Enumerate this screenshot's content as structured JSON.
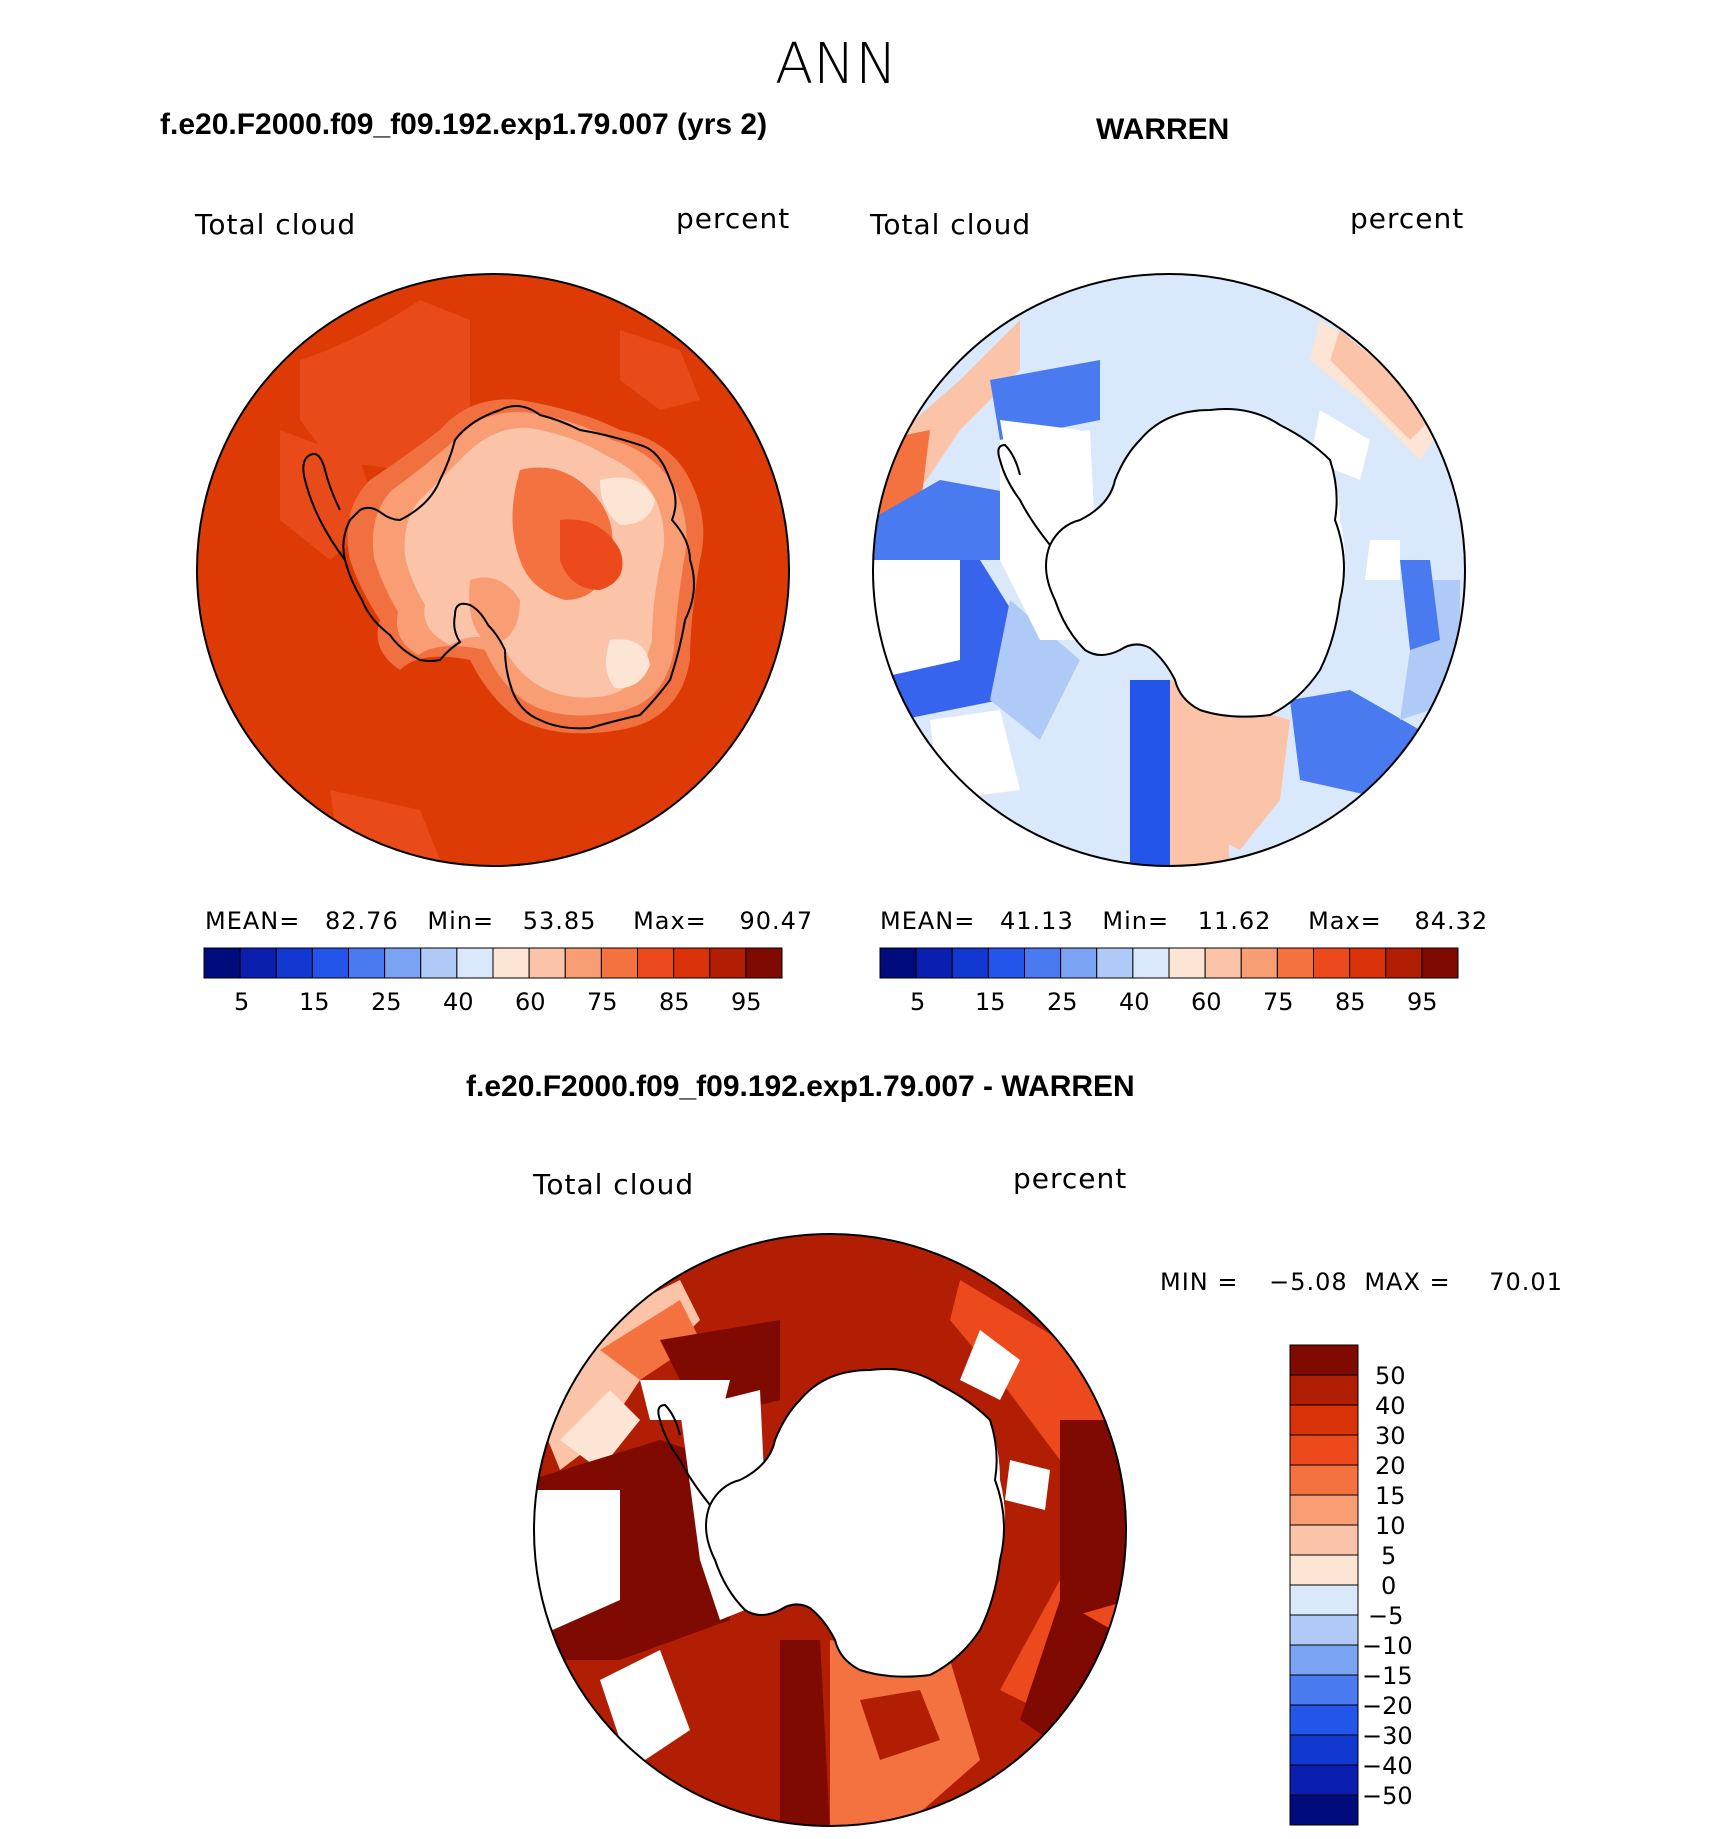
{
  "main_title": "ANN",
  "panels": [
    {
      "case_title": "f.e20.F2000.f09_f09.192.exp1.79.007 (yrs 2)",
      "variable": "Total cloud",
      "units": "percent",
      "stats": {
        "mean_label": "MEAN=",
        "mean": "82.76",
        "min_label": "Min=",
        "min": "53.85",
        "max_label": "Max=",
        "max": "90.47"
      },
      "colorbar_ticks": [
        "5",
        "15",
        "25",
        "40",
        "60",
        "75",
        "85",
        "95"
      ]
    },
    {
      "case_title": "WARREN",
      "variable": "Total cloud",
      "units": "percent",
      "stats": {
        "mean_label": "MEAN=",
        "mean": "41.13",
        "min_label": "Min=",
        "min": "11.62",
        "max_label": "Max=",
        "max": "84.32"
      },
      "colorbar_ticks": [
        "5",
        "15",
        "25",
        "40",
        "60",
        "75",
        "85",
        "95"
      ]
    }
  ],
  "diff_panel": {
    "title": "f.e20.F2000.f09_f09.192.exp1.79.007 - WARREN",
    "variable": "Total cloud",
    "units": "percent",
    "min_label": "MIN =",
    "min": "−5.08",
    "max_label": "MAX =",
    "max": "70.01",
    "colorbar_ticks": [
      "50",
      "40",
      "30",
      "20",
      "15",
      "10",
      "5",
      "0",
      "−5",
      "−10",
      "−15",
      "−20",
      "−30",
      "−40",
      "−50"
    ]
  },
  "colors": {
    "abs_scale": [
      "#000b7c",
      "#0a1fb0",
      "#1238d2",
      "#2355eb",
      "#4a7af0",
      "#7ba3f4",
      "#b0caf8",
      "#d9e8fb",
      "#fde5d6",
      "#fbc4a8",
      "#f89d74",
      "#f4723f",
      "#ec4a1c",
      "#d93209",
      "#b11e04",
      "#7f0a02"
    ],
    "diff_scale": [
      "#7f0a02",
      "#b11e04",
      "#d93209",
      "#ec4a1c",
      "#f4723f",
      "#f89d74",
      "#fbc4a8",
      "#fde5d6",
      "#d9e8fb",
      "#b0caf8",
      "#7ba3f4",
      "#4a7af0",
      "#2355eb",
      "#1238d2",
      "#0a1fb0",
      "#000b7c"
    ]
  }
}
